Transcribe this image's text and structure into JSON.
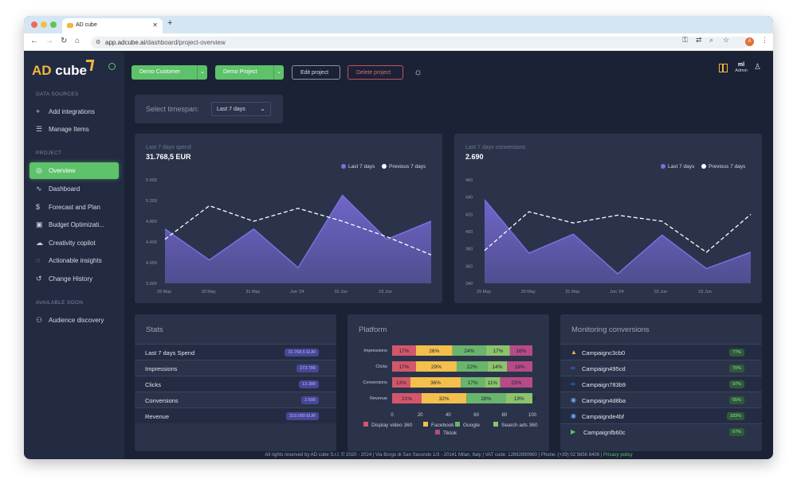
{
  "browser": {
    "tab_title": "AD cube",
    "url_host": "app.adcube.ai",
    "url_path": "/dashboard/project-overview",
    "profile_initial": "A"
  },
  "sidebar": {
    "logo_ad": "AD",
    "logo_cube": " cube",
    "sections": {
      "data_sources": "DATA SOURCES",
      "project": "PROJECT",
      "available_soon": "AVAILABLE SOON"
    },
    "data_items": [
      {
        "label": "Add integrations",
        "icon": "plus-icon"
      },
      {
        "label": "Manage Items",
        "icon": "list-icon"
      }
    ],
    "project_items": [
      {
        "label": "Overview",
        "icon": "compass-icon",
        "active": true
      },
      {
        "label": "Dashboard",
        "icon": "activity-icon"
      },
      {
        "label": "Forecast and Plan",
        "icon": "dollar-icon"
      },
      {
        "label": "Budget Optimizati...",
        "icon": "chip-icon"
      },
      {
        "label": "Creativity copilot",
        "icon": "brain-icon"
      },
      {
        "label": "Actionable insights",
        "icon": "target-icon"
      },
      {
        "label": "Change History",
        "icon": "history-icon"
      }
    ],
    "soon_items": [
      {
        "label": "Audience discovery",
        "icon": "users-icon"
      }
    ]
  },
  "topbar": {
    "customer_label": "Demo Customer",
    "project_label": "Demo Project",
    "edit_label": "Edit project",
    "delete_label": "Delete project",
    "user_name": "ml",
    "user_role": "Admin"
  },
  "timespan": {
    "label": "Select timespan:",
    "value": "Last 7 days"
  },
  "colors": {
    "accent_green": "#5ec26a",
    "brand_yellow": "#f0b63e",
    "series_current": "#7b6fe0",
    "series_previous": "#ffffff"
  },
  "spend_card": {
    "subtitle": "Last 7 days spend",
    "value": "31.768,5 EUR",
    "legend_current": "Last 7 days",
    "legend_previous": "Previous 7 days"
  },
  "conv_card": {
    "subtitle": "Last 7 days conversions",
    "value": "2.690",
    "legend_current": "Last 7 days",
    "legend_previous": "Previous 7 days"
  },
  "chart_data": [
    {
      "type": "area",
      "x": [
        "29 May",
        "30 May",
        "31 May",
        "Jun '24",
        "02 Jun",
        "03 Jun",
        ""
      ],
      "x_tick_labels": [
        "29 May",
        "30 May",
        "31 May",
        "Jun '24",
        "02 Jun",
        "03 Jun"
      ],
      "ylim": [
        3600,
        5600
      ],
      "y_ticks": [
        3600,
        4000,
        4400,
        4800,
        5200,
        5600
      ],
      "y_tick_labels": [
        "3.600",
        "4.000",
        "4.400",
        "4.800",
        "5.200",
        "5.600"
      ],
      "series": [
        {
          "name": "Last 7 days",
          "values": [
            4650,
            4050,
            4650,
            3900,
            5300,
            4450,
            4800
          ]
        },
        {
          "name": "Previous 7 days",
          "values": [
            4450,
            5100,
            4800,
            5050,
            4800,
            4500,
            4150
          ]
        }
      ],
      "grid": false,
      "legend": "top-right"
    },
    {
      "type": "area",
      "x": [
        "29 May",
        "30 May",
        "31 May",
        "Jun '24",
        "02 Jun",
        "03 Jun",
        ""
      ],
      "x_tick_labels": [
        "29 May",
        "30 May",
        "31 May",
        "Jun '24",
        "02 Jun",
        "03 Jun"
      ],
      "ylim": [
        340,
        460
      ],
      "y_ticks": [
        340,
        360,
        380,
        400,
        420,
        440,
        460
      ],
      "y_tick_labels": [
        "340",
        "360",
        "380",
        "400",
        "420",
        "440",
        "460"
      ],
      "series": [
        {
          "name": "Last 7 days",
          "values": [
            437,
            375,
            397,
            351,
            396,
            357,
            376
          ]
        },
        {
          "name": "Previous 7 days",
          "values": [
            378,
            423,
            410,
            419,
            412,
            376,
            420
          ]
        }
      ],
      "grid": false,
      "legend": "top-right"
    },
    {
      "type": "bar",
      "orientation": "horizontal-stacked-100",
      "categories": [
        "Impressions",
        "Clicks",
        "Conversions",
        "Revenue"
      ],
      "series": [
        {
          "name": "Display video 360",
          "color": "#d4566a",
          "values": [
            17,
            17,
            13,
            21
          ],
          "labels": [
            "17%",
            "17%",
            "13%",
            "21%"
          ]
        },
        {
          "name": "Facebook",
          "color": "#f3bf4d",
          "values": [
            26,
            29,
            36,
            32
          ],
          "labels": [
            "26%",
            "29%",
            "36%",
            "32%"
          ]
        },
        {
          "name": "Google",
          "color": "#69b56c",
          "values": [
            24,
            22,
            17,
            28
          ],
          "labels": [
            "24%",
            "22%",
            "17%",
            "28%"
          ]
        },
        {
          "name": "Search ads 360",
          "color": "#8cc36b",
          "values": [
            17,
            14,
            11,
            19
          ],
          "labels": [
            "17%",
            "14%",
            "11%",
            "19%"
          ]
        },
        {
          "name": "Tiktok",
          "color": "#b54b87",
          "values": [
            16,
            18,
            23,
            0
          ],
          "labels": [
            "16%",
            "18%",
            "23%",
            "0"
          ]
        }
      ],
      "xlim": [
        0,
        100
      ],
      "x_ticks": [
        0,
        20,
        40,
        60,
        80,
        100
      ],
      "legend": "bottom"
    }
  ],
  "stats": {
    "title": "Stats",
    "rows": [
      {
        "label": "Last 7 days Spend",
        "value": "31.768,5 EUR"
      },
      {
        "label": "Impressions",
        "value": "273.789"
      },
      {
        "label": "Clicks",
        "value": "13.389"
      },
      {
        "label": "Conversions",
        "value": "2.690"
      },
      {
        "label": "Revenue",
        "value": "319.089 EUR"
      }
    ]
  },
  "platform": {
    "title": "Platform"
  },
  "monitoring": {
    "title": "Monitoring conversions",
    "rows": [
      {
        "name": "Campaignc3cb0",
        "value": "77%",
        "icon": "google-ads-icon"
      },
      {
        "name": "Campaign495cd",
        "value": "70%",
        "icon": "meta-icon"
      },
      {
        "name": "Campaign783b9",
        "value": "97%",
        "icon": "meta-icon"
      },
      {
        "name": "Campaign4d8ba",
        "value": "65%",
        "icon": "search-ads-icon"
      },
      {
        "name": "Campaignde4bf",
        "value": "183%",
        "icon": "search-ads-icon"
      },
      {
        "name": "Campaignfb60c",
        "value": "67%",
        "icon": "dv360-icon"
      }
    ]
  },
  "footer": {
    "text": "All rights reserved by AD cube S.r.l. © 2020 - 2024 | Via Borgo di San Secondo 1/3 - 20141 Milan, Italy | VAT code: 12692890960 | Phone: (+39) 02 5656 8408 | ",
    "link": "Privacy policy"
  }
}
